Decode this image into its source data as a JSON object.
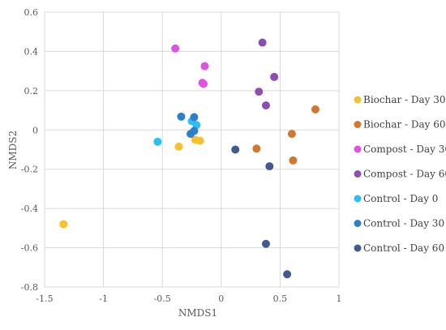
{
  "chart_data": {
    "type": "scatter",
    "xlabel": "NMDS1",
    "ylabel": "NMDS2",
    "xlim": [
      -1.5,
      1
    ],
    "ylim": [
      -0.8,
      0.6
    ],
    "x_ticks": [
      "-1.5",
      "-1",
      "-0.5",
      "0",
      "0.5",
      "1"
    ],
    "x_tick_values": [
      -1.5,
      -1,
      -0.5,
      0,
      0.5,
      1
    ],
    "y_ticks": [
      "0.6",
      "0.4",
      "0.2",
      "0",
      "-0.2",
      "-0.4",
      "-0.6",
      "-0.8"
    ],
    "y_tick_values": [
      0.6,
      0.4,
      0.2,
      0,
      -0.2,
      -0.4,
      -0.6,
      -0.8
    ],
    "grid": true,
    "legend_position": "right",
    "series": [
      {
        "name": "Biochar - Day 30",
        "color": "#F5C12E",
        "points": [
          [
            -1.34,
            -0.48
          ],
          [
            -0.36,
            -0.085
          ],
          [
            -0.22,
            -0.05
          ],
          [
            -0.18,
            -0.055
          ]
        ]
      },
      {
        "name": "Biochar - Day 60",
        "color": "#D2772F",
        "points": [
          [
            0.3,
            -0.095
          ],
          [
            0.6,
            -0.02
          ],
          [
            0.61,
            -0.155
          ],
          [
            0.8,
            0.105
          ]
        ]
      },
      {
        "name": "Compost - Day 30",
        "color": "#E052E0",
        "points": [
          [
            -0.39,
            0.415
          ],
          [
            -0.14,
            0.325
          ],
          [
            -0.16,
            0.24
          ],
          [
            -0.15,
            0.235
          ]
        ]
      },
      {
        "name": "Compost - Day 60",
        "color": "#8E4DB0",
        "points": [
          [
            0.35,
            0.445
          ],
          [
            0.45,
            0.27
          ],
          [
            0.32,
            0.195
          ],
          [
            0.38,
            0.125
          ]
        ]
      },
      {
        "name": "Control - Day 0",
        "color": "#2FBFEF",
        "points": [
          [
            -0.54,
            -0.06
          ],
          [
            -0.25,
            0.045
          ],
          [
            -0.21,
            0.025
          ]
        ]
      },
      {
        "name": "Control - Day 30",
        "color": "#2D80C8",
        "points": [
          [
            -0.34,
            0.068
          ],
          [
            -0.23,
            0.065
          ],
          [
            -0.23,
            -0.005
          ],
          [
            -0.26,
            -0.02
          ]
        ]
      },
      {
        "name": "Control - Day 60",
        "color": "#44598F",
        "points": [
          [
            0.12,
            -0.1
          ],
          [
            0.41,
            -0.185
          ],
          [
            0.38,
            -0.58
          ],
          [
            0.56,
            -0.735
          ]
        ]
      }
    ]
  }
}
